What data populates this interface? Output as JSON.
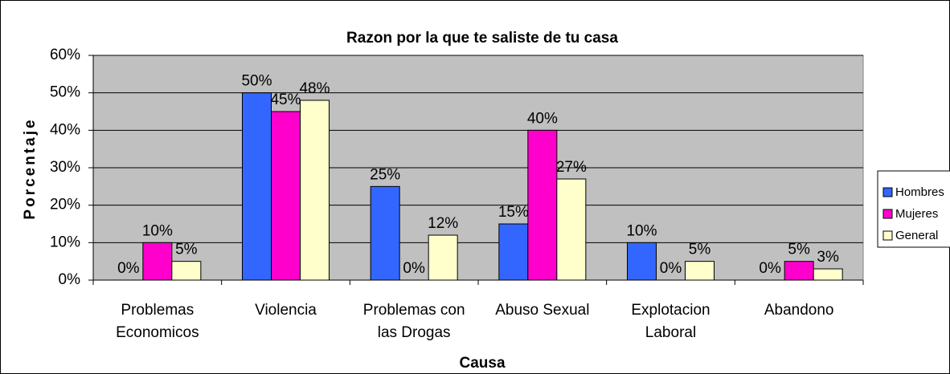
{
  "chart_data": {
    "type": "bar",
    "title": "Razon por la que te saliste de tu casa",
    "x_label": "Causa",
    "y_label": "Porcentaje",
    "categories": [
      "Problemas Economicos",
      "Violencia",
      "Problemas con las Drogas",
      "Abuso Sexual",
      "Explotacion Laboral",
      "Abandono"
    ],
    "series": [
      {
        "name": "Hombres",
        "color": "#3366ff",
        "values": [
          0,
          50,
          25,
          15,
          10,
          0
        ],
        "value_labels": [
          "0%",
          "50%",
          "25%",
          "15%",
          "10%",
          "0%"
        ]
      },
      {
        "name": "Mujeres",
        "color": "#ff00cc",
        "values": [
          10,
          45,
          0,
          40,
          0,
          5
        ],
        "value_labels": [
          "10%",
          "45%",
          "0%",
          "40%",
          "0%",
          "5%"
        ]
      },
      {
        "name": "General",
        "color": "#ffffcc",
        "values": [
          5,
          48,
          12,
          27,
          5,
          3
        ],
        "value_labels": [
          "5%",
          "48%",
          "12%",
          "27%",
          "5%",
          "3%"
        ]
      }
    ],
    "ylim": [
      0,
      60
    ],
    "yticks": [
      {
        "value": 0,
        "label": "0%"
      },
      {
        "value": 10,
        "label": "10%"
      },
      {
        "value": 20,
        "label": "20%"
      },
      {
        "value": 30,
        "label": "30%"
      },
      {
        "value": 40,
        "label": "40%"
      },
      {
        "value": 50,
        "label": "50%"
      },
      {
        "value": 60,
        "label": "60%"
      }
    ],
    "grid": true,
    "legend": "right"
  }
}
